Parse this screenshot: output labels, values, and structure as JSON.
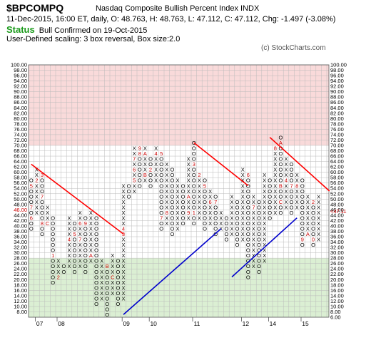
{
  "header": {
    "symbol": "$BPCOMPQ",
    "name": "Nasdaq Composite Bullish Percent Index  INDX",
    "quote": "11-Dec-2015, 16:00 ET, daily, O: 48.763, H: 48.763, L: 47.112, C: 47.112, Chg: -1.497 (-3.08%)",
    "status_label": "Status",
    "status_text": "Bull Confirmed on 19-Oct-2015",
    "scaling": "User-Defined scaling: 3 box reversal, Box size:2.0",
    "credit": "(c) StockCharts.com"
  },
  "chart_data": {
    "type": "point-and-figure",
    "box_size": 2.0,
    "reversal": 3,
    "ylim": [
      6,
      100
    ],
    "y_ticks": [
      "100.00",
      "98.00",
      "96.00",
      "94.00",
      "92.00",
      "90.00",
      "88.00",
      "86.00",
      "84.00",
      "82.00",
      "80.00",
      "78.00",
      "76.00",
      "74.00",
      "72.00",
      "70.00",
      "68.00",
      "66.00",
      "64.00",
      "62.00",
      "60.00",
      "58.00",
      "56.00",
      "54.00",
      "52.00",
      "50.00",
      "48.00",
      "46.00",
      "44.00",
      "42.00",
      "40.00",
      "38.00",
      "36.00",
      "34.00",
      "32.00",
      "30.00",
      "28.00",
      "26.00",
      "24.00",
      "22.00",
      "20.00",
      "18.00",
      "16.00",
      "14.00",
      "12.00",
      "10.00",
      "8.00",
      "6.00"
    ],
    "left_y_ticks": [
      "100.00",
      "98.00",
      "96.00",
      "94.00",
      "92.00",
      "90.00",
      "88.00",
      "86.00",
      "84.00",
      "82.00",
      "80.00",
      "78.00",
      "76.00",
      "74.00",
      "72.00",
      "70.00",
      "68.00",
      "66.00",
      "64.00",
      "62.00",
      "60.00",
      "58.00",
      "56.00",
      "54.00",
      "52.00",
      "50.00",
      "48.00",
      "46.00",
      "44.00",
      "42.00",
      "40.00",
      "38.00",
      "36.00",
      "34.00",
      "32.00",
      "30.00",
      "28.00",
      "26.00",
      "24.00",
      "22.00",
      "20.00",
      "18.00",
      "16.00",
      "14.00",
      "12.00",
      "10.00",
      "8.00"
    ],
    "current_value_label": "46.00",
    "last_price_tag": "<47.11",
    "year_labels": [
      {
        "label": "07",
        "col": 1
      },
      {
        "label": "08",
        "col": 5
      },
      {
        "label": "09",
        "col": 17
      },
      {
        "label": "10",
        "col": 22
      },
      {
        "label": "11",
        "col": 30
      },
      {
        "label": "12",
        "col": 39
      },
      {
        "label": "14",
        "col": 44
      },
      {
        "label": "15",
        "col": 50
      }
    ],
    "zones": {
      "overbought": {
        "from": 70,
        "to": 100,
        "color": "#f9dada"
      },
      "oversold": {
        "from": 6,
        "to": 28,
        "color": "#dbefd3"
      },
      "neutral_color": "#ffffff"
    },
    "colors": {
      "x": "#000000",
      "o": "#000000",
      "month_label": "#cc0000",
      "resistance": "#ff0000",
      "support": "#0000cc",
      "grid": "#bbbbbb"
    },
    "columns": [
      {
        "type": "O",
        "from": 40,
        "to": 58
      },
      {
        "type": "X",
        "from": 46,
        "to": 62
      },
      {
        "type": "O",
        "from": 38,
        "to": 60
      },
      {
        "type": "X",
        "from": 42,
        "to": 48
      },
      {
        "type": "O",
        "from": 20,
        "to": 44
      },
      {
        "type": "X",
        "from": 22,
        "to": 28
      },
      {
        "type": "O",
        "from": 24,
        "to": 26
      },
      {
        "type": "X",
        "from": 26,
        "to": 44
      },
      {
        "type": "O",
        "from": 24,
        "to": 42
      },
      {
        "type": "X",
        "from": 26,
        "to": 46
      },
      {
        "type": "O",
        "from": 24,
        "to": 44
      },
      {
        "type": "X",
        "from": 28,
        "to": 46
      },
      {
        "type": "O",
        "from": 12,
        "to": 44
      },
      {
        "type": "X",
        "from": 14,
        "to": 28
      },
      {
        "type": "O",
        "from": 8,
        "to": 26
      },
      {
        "type": "X",
        "from": 16,
        "to": 30
      },
      {
        "type": "O",
        "from": 12,
        "to": 28
      },
      {
        "type": "X",
        "from": 14,
        "to": 56
      },
      {
        "type": "O",
        "from": 52,
        "to": 56
      },
      {
        "type": "X",
        "from": 54,
        "to": 70
      },
      {
        "type": "O",
        "from": 56,
        "to": 70
      },
      {
        "type": "X",
        "from": 58,
        "to": 70
      },
      {
        "type": "O",
        "from": 56,
        "to": 66
      },
      {
        "type": "X",
        "from": 58,
        "to": 70
      },
      {
        "type": "O",
        "from": 40,
        "to": 68
      },
      {
        "type": "X",
        "from": 42,
        "to": 64
      },
      {
        "type": "O",
        "from": 38,
        "to": 62
      },
      {
        "type": "X",
        "from": 40,
        "to": 58
      },
      {
        "type": "O",
        "from": 42,
        "to": 56
      },
      {
        "type": "X",
        "from": 44,
        "to": 66
      },
      {
        "type": "O",
        "from": 42,
        "to": 72
      },
      {
        "type": "X",
        "from": 44,
        "to": 60
      },
      {
        "type": "O",
        "from": 40,
        "to": 58
      },
      {
        "type": "X",
        "from": 42,
        "to": 54
      },
      {
        "type": "O",
        "from": 38,
        "to": 52
      },
      {
        "type": "X",
        "from": 40,
        "to": 46
      },
      {
        "type": "O",
        "from": 36,
        "to": 44
      },
      {
        "type": "X",
        "from": 38,
        "to": 52
      },
      {
        "type": "O",
        "from": 34,
        "to": 50
      },
      {
        "type": "X",
        "from": 36,
        "to": 62
      },
      {
        "type": "O",
        "from": 22,
        "to": 60
      },
      {
        "type": "X",
        "from": 26,
        "to": 52
      },
      {
        "type": "O",
        "from": 24,
        "to": 50
      },
      {
        "type": "X",
        "from": 28,
        "to": 60
      },
      {
        "type": "O",
        "from": 44,
        "to": 58
      },
      {
        "type": "X",
        "from": 46,
        "to": 70
      },
      {
        "type": "O",
        "from": 46,
        "to": 74
      },
      {
        "type": "X",
        "from": 48,
        "to": 66
      },
      {
        "type": "O",
        "from": 46,
        "to": 64
      },
      {
        "type": "X",
        "from": 48,
        "to": 60
      },
      {
        "type": "O",
        "from": 34,
        "to": 58
      },
      {
        "type": "X",
        "from": 38,
        "to": 52
      },
      {
        "type": "O",
        "from": 34,
        "to": 50
      },
      {
        "type": "X",
        "from": 36,
        "to": 52
      }
    ],
    "month_marks": [
      {
        "col": 0,
        "y": 56,
        "t": "5"
      },
      {
        "col": 0,
        "y": 48,
        "t": "7"
      },
      {
        "col": 0,
        "y": 44,
        "t": "6"
      },
      {
        "col": 1,
        "y": 58,
        "t": "2"
      },
      {
        "col": 2,
        "y": 60,
        "t": "3"
      },
      {
        "col": 2,
        "y": 52,
        "t": "7"
      },
      {
        "col": 2,
        "y": 42,
        "t": "8"
      },
      {
        "col": 3,
        "y": 42,
        "t": "C"
      },
      {
        "col": 4,
        "y": 30,
        "t": "1"
      },
      {
        "col": 5,
        "y": 22,
        "t": "2"
      },
      {
        "col": 7,
        "y": 36,
        "t": "4"
      },
      {
        "col": 8,
        "y": 38,
        "t": "5"
      },
      {
        "col": 9,
        "y": 36,
        "t": "7"
      },
      {
        "col": 9,
        "y": 42,
        "t": "6"
      },
      {
        "col": 10,
        "y": 42,
        "t": "9"
      },
      {
        "col": 11,
        "y": 30,
        "t": "A"
      },
      {
        "col": 14,
        "y": 26,
        "t": "B"
      },
      {
        "col": 15,
        "y": 22,
        "t": "C"
      },
      {
        "col": 17,
        "y": 38,
        "t": "3"
      },
      {
        "col": 17,
        "y": 40,
        "t": "4"
      },
      {
        "col": 19,
        "y": 58,
        "t": "5"
      },
      {
        "col": 19,
        "y": 62,
        "t": "6"
      },
      {
        "col": 19,
        "y": 66,
        "t": "7"
      },
      {
        "col": 20,
        "y": 68,
        "t": "8"
      },
      {
        "col": 20,
        "y": 70,
        "t": "9"
      },
      {
        "col": 21,
        "y": 68,
        "t": "A"
      },
      {
        "col": 21,
        "y": 60,
        "t": "B"
      },
      {
        "col": 22,
        "y": 62,
        "t": "2"
      },
      {
        "col": 23,
        "y": 68,
        "t": "4"
      },
      {
        "col": 24,
        "y": 68,
        "t": "5"
      },
      {
        "col": 24,
        "y": 44,
        "t": "7"
      },
      {
        "col": 25,
        "y": 46,
        "t": "8"
      },
      {
        "col": 27,
        "y": 64,
        "t": "C"
      },
      {
        "col": 29,
        "y": 52,
        "t": "A"
      },
      {
        "col": 29,
        "y": 46,
        "t": "9"
      },
      {
        "col": 30,
        "y": 46,
        "t": "1"
      },
      {
        "col": 30,
        "y": 64,
        "t": "3"
      },
      {
        "col": 31,
        "y": 60,
        "t": "2"
      },
      {
        "col": 32,
        "y": 56,
        "t": "5"
      },
      {
        "col": 33,
        "y": 50,
        "t": "6"
      },
      {
        "col": 34,
        "y": 50,
        "t": "7"
      },
      {
        "col": 35,
        "y": 30,
        "t": "9"
      },
      {
        "col": 36,
        "y": 28,
        "t": "A"
      },
      {
        "col": 38,
        "y": 60,
        "t": "2"
      },
      {
        "col": 39,
        "y": 64,
        "t": "4"
      },
      {
        "col": 40,
        "y": 60,
        "t": "6"
      },
      {
        "col": 41,
        "y": 48,
        "t": "7"
      },
      {
        "col": 42,
        "y": 56,
        "t": "8"
      },
      {
        "col": 45,
        "y": 70,
        "t": "8"
      },
      {
        "col": 45,
        "y": 72,
        "t": "9"
      },
      {
        "col": 46,
        "y": 72,
        "t": "A"
      },
      {
        "col": 46,
        "y": 56,
        "t": "B"
      },
      {
        "col": 46,
        "y": 50,
        "t": "C"
      },
      {
        "col": 47,
        "y": 58,
        "t": "4"
      },
      {
        "col": 48,
        "y": 56,
        "t": "7"
      },
      {
        "col": 49,
        "y": 56,
        "t": "8"
      },
      {
        "col": 50,
        "y": 36,
        "t": "9"
      },
      {
        "col": 51,
        "y": 38,
        "t": "A"
      },
      {
        "col": 52,
        "y": 36,
        "t": "0"
      },
      {
        "col": 52,
        "y": 50,
        "t": "2"
      }
    ],
    "trendlines": [
      {
        "kind": "resistance",
        "from": {
          "col": 0,
          "y": 64
        },
        "to": {
          "col": 17,
          "y": 38
        }
      },
      {
        "kind": "support",
        "from": {
          "col": 17,
          "y": 8
        },
        "to": {
          "col": 35,
          "y": 40
        }
      },
      {
        "kind": "resistance",
        "from": {
          "col": 30,
          "y": 72
        },
        "to": {
          "col": 40,
          "y": 56
        }
      },
      {
        "kind": "support",
        "from": {
          "col": 37,
          "y": 22
        },
        "to": {
          "col": 49,
          "y": 44
        }
      },
      {
        "kind": "resistance",
        "from": {
          "col": 44,
          "y": 74
        },
        "to": {
          "col": 55,
          "y": 54
        }
      }
    ]
  }
}
